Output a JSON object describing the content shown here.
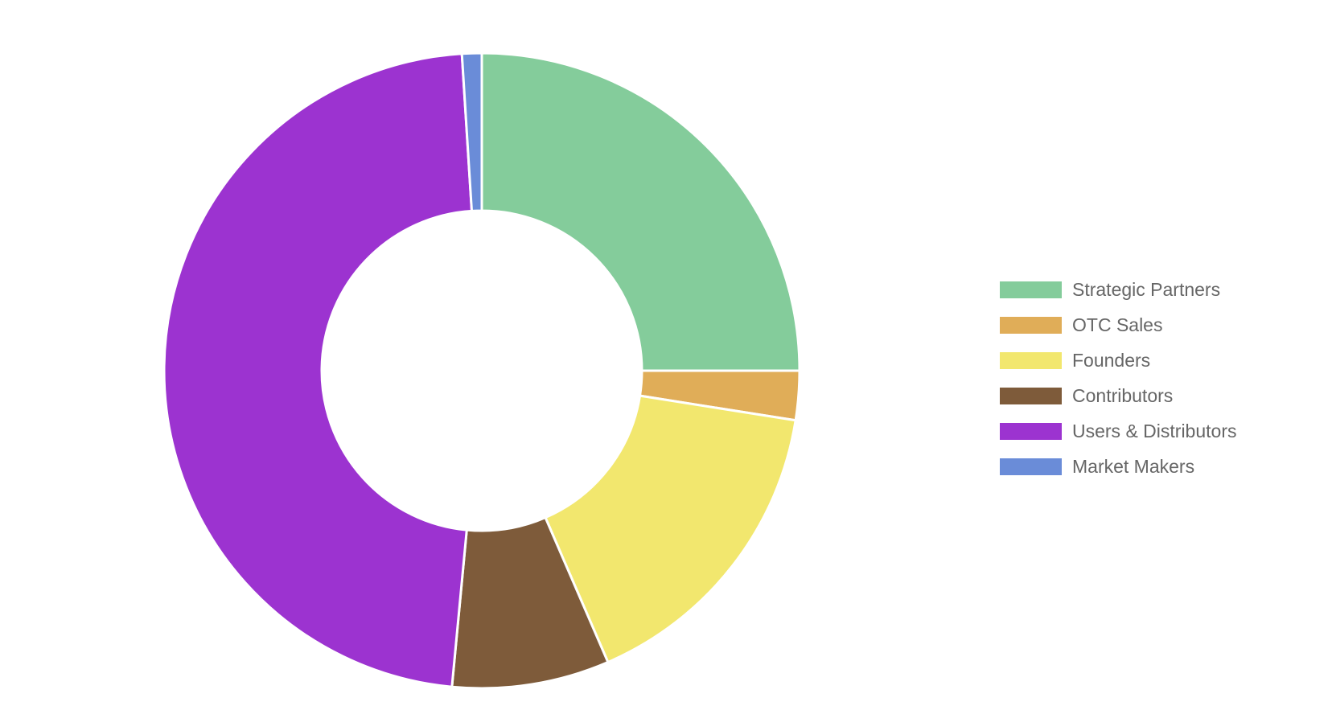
{
  "chart_data": {
    "type": "pie",
    "donut": true,
    "categories": [
      "Strategic Partners",
      "OTC Sales",
      "Founders",
      "Contributors",
      "Users & Distributors",
      "Market Makers"
    ],
    "values": [
      25,
      2.5,
      16,
      8,
      47.5,
      1
    ],
    "colors": [
      "#84cc9b",
      "#e0ad58",
      "#f2e76e",
      "#7e5b3a",
      "#9c33d0",
      "#6a8cd8"
    ],
    "legend_position": "right",
    "start_angle": "12 o'clock",
    "direction": "clockwise"
  }
}
